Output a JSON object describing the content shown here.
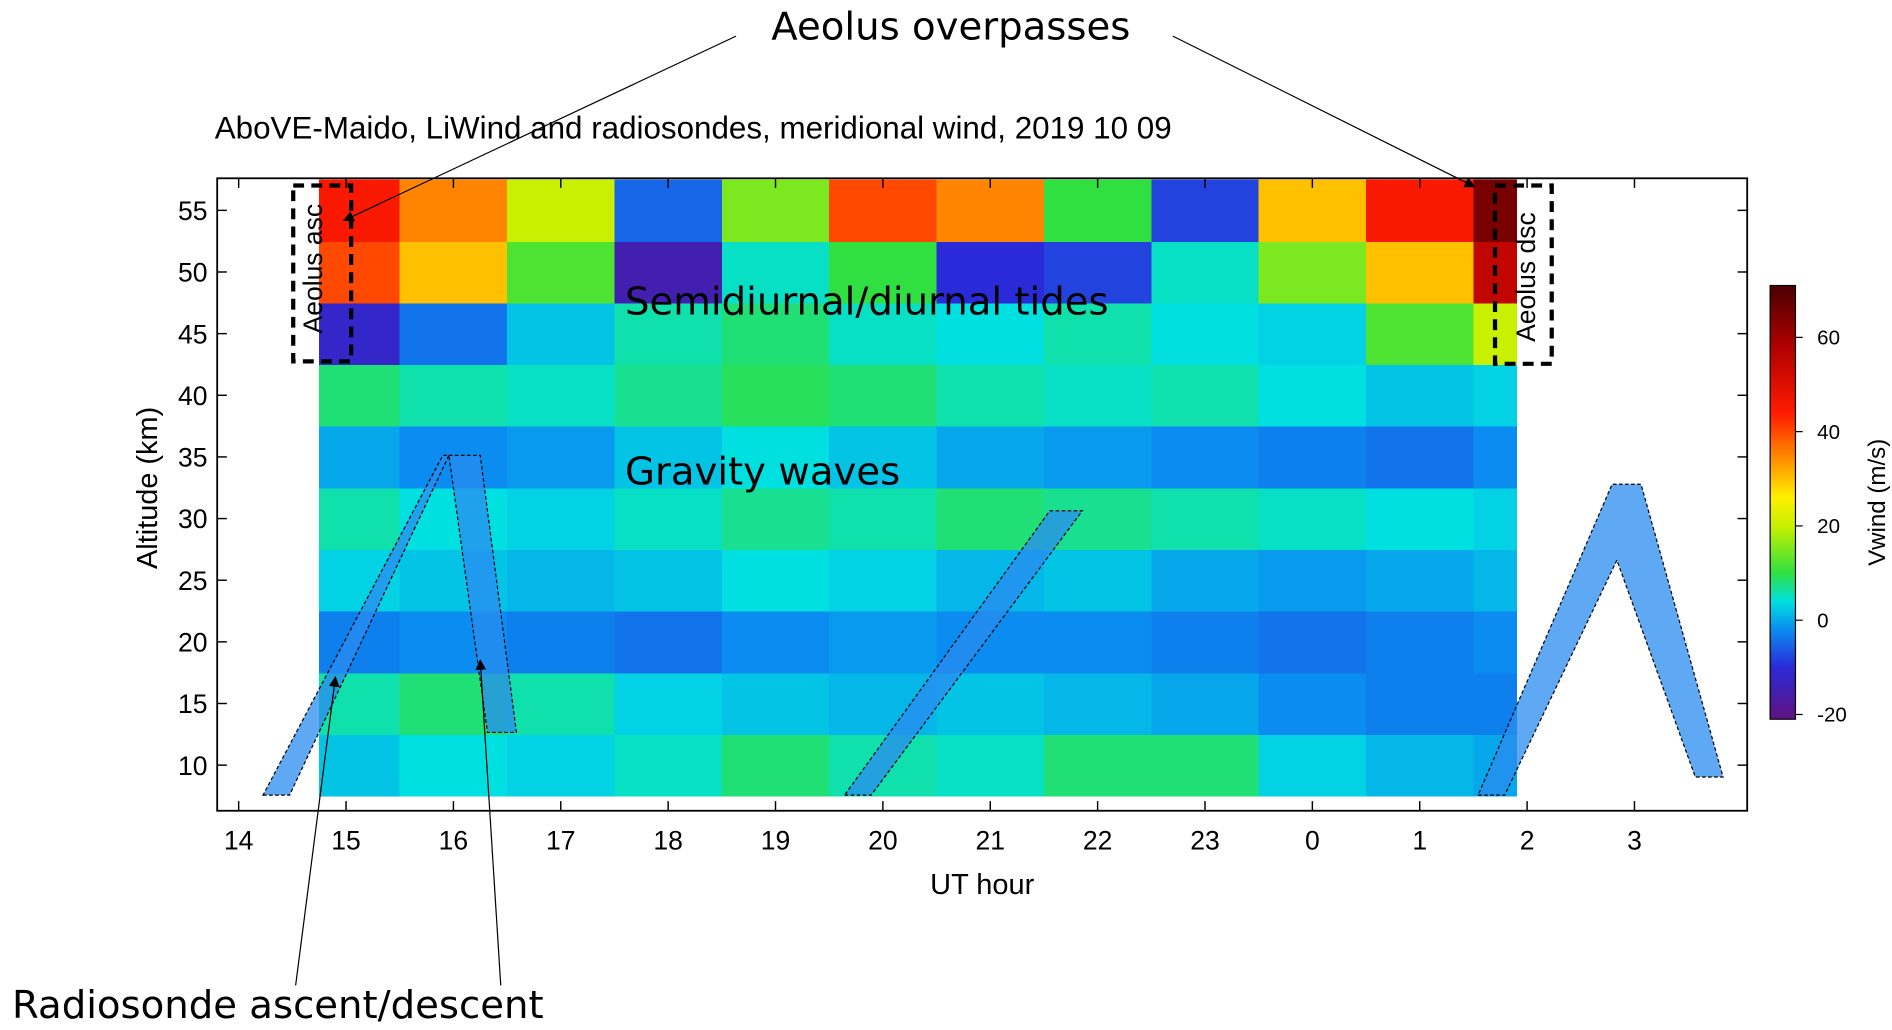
{
  "chart_data": {
    "type": "heatmap",
    "title": "AboVE-Maido, LiWind and radiosondes, meridional wind, 2019 10 09",
    "xlabel": "UT hour",
    "ylabel": "Altitude (km)",
    "xlim": [
      13.8,
      28.05
    ],
    "ylim": [
      6.3,
      57.6
    ],
    "xticks": [
      14,
      15,
      16,
      17,
      18,
      19,
      20,
      21,
      22,
      23,
      {
        "value": 24,
        "label": "0"
      },
      {
        "value": 25,
        "label": "1"
      },
      {
        "value": 26,
        "label": "2"
      },
      {
        "value": 27,
        "label": "3"
      }
    ],
    "yticks": [
      10,
      15,
      20,
      25,
      30,
      35,
      40,
      45,
      50,
      55
    ],
    "x_edges": [
      14.75,
      15.5,
      16.5,
      17.5,
      18.5,
      19.5,
      20.5,
      21.5,
      22.5,
      23.5,
      24.5,
      25.5,
      25.9
    ],
    "y_edges": [
      7.5,
      12.5,
      17.5,
      22.5,
      27.5,
      32.5,
      37.5,
      42.5,
      47.5,
      52.5,
      57.5
    ],
    "z": [
      [
        2,
        4,
        3,
        5,
        8,
        6,
        5,
        8,
        8,
        3,
        1,
        0
      ],
      [
        6,
        8,
        6,
        3,
        2,
        1,
        2,
        1,
        0,
        -2,
        -3,
        -3
      ],
      [
        -3,
        -2,
        -3,
        -4,
        -2,
        -1,
        -2,
        -2,
        -3,
        -4,
        -3,
        -2
      ],
      [
        3,
        2,
        1,
        2,
        4,
        3,
        1,
        2,
        0,
        -1,
        0,
        1
      ],
      [
        6,
        4,
        3,
        5,
        7,
        6,
        8,
        7,
        6,
        5,
        4,
        3
      ],
      [
        0,
        -2,
        -1,
        2,
        4,
        2,
        0,
        -1,
        -2,
        -3,
        -4,
        -2
      ],
      [
        8,
        6,
        5,
        7,
        9,
        8,
        6,
        5,
        6,
        4,
        2,
        3
      ],
      [
        -12,
        -4,
        2,
        6,
        8,
        5,
        4,
        6,
        4,
        3,
        12,
        20
      ],
      [
        40,
        30,
        12,
        -15,
        5,
        10,
        -10,
        -8,
        5,
        15,
        30,
        55
      ],
      [
        45,
        35,
        20,
        -5,
        15,
        40,
        35,
        10,
        -8,
        30,
        45,
        65
      ]
    ],
    "colorbar": {
      "label": "Vwind (m/s)",
      "lim": [
        -21,
        71
      ],
      "ticks": [
        -20,
        0,
        20,
        40,
        60
      ]
    },
    "colormap": [
      {
        "value": -20,
        "color": "#5c1488"
      },
      {
        "value": -10,
        "color": "#2a2ad8"
      },
      {
        "value": -2,
        "color": "#0a8cf0"
      },
      {
        "value": 4,
        "color": "#00e0e0"
      },
      {
        "value": 10,
        "color": "#30e040"
      },
      {
        "value": 20,
        "color": "#c8f000"
      },
      {
        "value": 26,
        "color": "#fff000"
      },
      {
        "value": 34,
        "color": "#ff9000"
      },
      {
        "value": 44,
        "color": "#ff1a00"
      },
      {
        "value": 58,
        "color": "#b00000"
      },
      {
        "value": 70,
        "color": "#500000"
      }
    ],
    "annotations": {
      "overpasses": "Aeolus overpasses",
      "tides": "Semidiurnal/diurnal tides",
      "gravity_waves": "Gravity waves",
      "radiosonde": "Radiosonde ascent/descent",
      "aeolus_asc": "Aeolus asc",
      "aeolus_dsc": "Aeolus dsc"
    }
  }
}
